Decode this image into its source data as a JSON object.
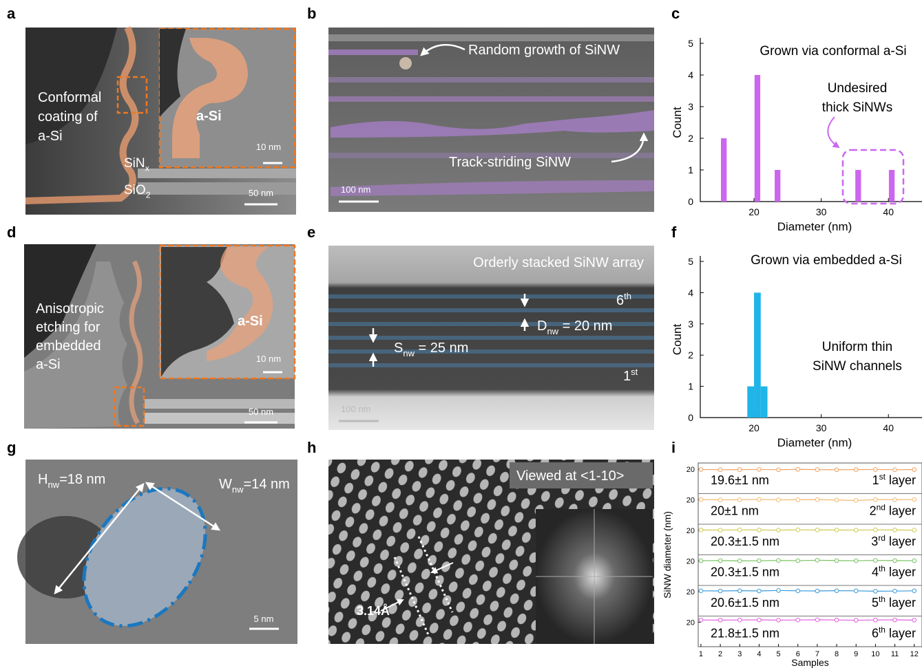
{
  "panel_labels": [
    "a",
    "b",
    "c",
    "d",
    "e",
    "f",
    "g",
    "h",
    "i"
  ],
  "panels": {
    "a": {
      "texts": [
        "Conformal",
        "coating of",
        "a-Si"
      ],
      "inset_label": "a-Si",
      "layers": [
        {
          "text": "SiN",
          "sub": "x"
        },
        {
          "text": "SiO",
          "sub": "2"
        }
      ],
      "scale_bars": [
        "10 nm",
        "50 nm"
      ]
    },
    "b": {
      "annotations": [
        "Random growth of SiNW",
        "Track-striding SiNW"
      ],
      "scale_bar": "100 nm"
    },
    "d": {
      "texts": [
        "Anisotropic",
        "etching for",
        "embedded",
        "a-Si"
      ],
      "inset_label": "a-Si",
      "scale_bars": [
        "10 nm",
        "50 nm"
      ]
    },
    "e": {
      "title": "Orderly stacked SiNW array",
      "layers": [
        {
          "text": "6",
          "sup": "th"
        },
        {
          "text": "1",
          "sup": "st"
        }
      ],
      "dims": [
        {
          "text": "D",
          "sub": "nw",
          "tail": " = 20 nm"
        },
        {
          "text": "S",
          "sub": "nw",
          "tail": " = 25 nm"
        }
      ],
      "scale_bar": "100 nm"
    },
    "g": {
      "dims": [
        {
          "text": "H",
          "sub": "nw",
          "tail": "=18 nm"
        },
        {
          "text": "W",
          "sub": "nw",
          "tail": "=14 nm"
        }
      ],
      "scale_bar": "5 nm"
    },
    "h": {
      "view": "Viewed at <1-10>",
      "spacing": "3.14Å"
    }
  },
  "chart_data": [
    {
      "type": "bar",
      "title": "Grown via conformal a-Si",
      "annotation": [
        "Undesired",
        "thick SiNWs"
      ],
      "x": [
        15.5,
        20.5,
        23.5,
        35.5,
        40.5
      ],
      "values": [
        2,
        4,
        1,
        1,
        1
      ],
      "color": "#cc66ee",
      "xlim": [
        12,
        45
      ],
      "xticks": [
        20,
        30,
        40
      ],
      "ylim": [
        0,
        5
      ],
      "yticks": [
        0,
        1,
        2,
        3,
        4,
        5
      ],
      "xlabel": "Diameter (nm)",
      "ylabel": "Count"
    },
    {
      "type": "bar",
      "title": "Grown via embedded a-Si",
      "annotation": [
        "Uniform thin",
        "SiNW channels"
      ],
      "x": [
        19.5,
        20.5,
        21.5
      ],
      "values": [
        1,
        4,
        1
      ],
      "color": "#1fb5e8",
      "xlim": [
        12,
        45
      ],
      "xticks": [
        20,
        30,
        40
      ],
      "ylim": [
        0,
        5
      ],
      "yticks": [
        0,
        1,
        2,
        3,
        4,
        5
      ],
      "xlabel": "Diameter (nm)",
      "ylabel": "Count"
    },
    {
      "type": "line",
      "xlabel": "Samples",
      "ylabel": "SiNW diameter (nm)",
      "x": [
        1,
        2,
        3,
        4,
        5,
        6,
        7,
        8,
        9,
        10,
        11,
        12
      ],
      "xlim": [
        0.86,
        12.4
      ],
      "xticks": [
        1,
        2,
        3,
        4,
        5,
        6,
        7,
        8,
        9,
        10,
        11,
        12
      ],
      "series": [
        {
          "stat": "19.6±1 nm",
          "layer": {
            "num": "1",
            "sup": "st",
            "word": " layer"
          },
          "color": "#f0a060",
          "values": [
            19.7,
            19.5,
            19.6,
            19.7,
            19.5,
            19.8,
            19.6,
            19.5,
            19.6,
            19.7,
            19.5,
            19.6
          ],
          "ylim": [
            0,
            25
          ],
          "yticks": [
            20
          ]
        },
        {
          "stat": "20±1 nm",
          "layer": {
            "num": "2",
            "sup": "nd",
            "word": " layer"
          },
          "color": "#f5b870",
          "values": [
            20.1,
            19.9,
            20.0,
            20.2,
            19.9,
            20.0,
            20.1,
            19.8,
            19.4,
            20.1,
            20.0,
            20.2
          ],
          "ylim": [
            0,
            25
          ],
          "yticks": [
            20
          ]
        },
        {
          "stat": "20.3±1.5 nm",
          "layer": {
            "num": "3",
            "sup": "rd",
            "word": " layer"
          },
          "color": "#d0c850",
          "values": [
            20.3,
            20.2,
            20.4,
            20.3,
            20.2,
            20.4,
            20.3,
            20.3,
            20.2,
            20.4,
            20.3,
            20.2
          ],
          "ylim": [
            0,
            25
          ],
          "yticks": [
            20
          ]
        },
        {
          "stat": "20.3±1.5 nm",
          "layer": {
            "num": "4",
            "sup": "th",
            "word": " layer"
          },
          "color": "#78c060",
          "values": [
            20.2,
            20.3,
            20.1,
            20.2,
            20.4,
            20.2,
            20.6,
            20.3,
            20.2,
            20.4,
            20.3,
            20.2
          ],
          "ylim": [
            0,
            25
          ],
          "yticks": [
            20
          ]
        },
        {
          "stat": "20.6±1.5 nm",
          "layer": {
            "num": "5",
            "sup": "th",
            "word": " layer"
          },
          "color": "#3a9ad9",
          "values": [
            20.6,
            20.5,
            20.7,
            20.5,
            20.9,
            20.6,
            20.5,
            20.7,
            20.6,
            20.3,
            20.4,
            20.6
          ],
          "ylim": [
            0,
            25
          ],
          "yticks": [
            20
          ]
        },
        {
          "stat": "21.8±1.5 nm",
          "layer": {
            "num": "6",
            "sup": "th",
            "word": " layer"
          },
          "color": "#e060e0",
          "values": [
            21.8,
            21.7,
            21.8,
            21.9,
            21.7,
            21.8,
            22.0,
            21.8,
            21.6,
            21.8,
            21.9,
            21.7
          ],
          "ylim": [
            0,
            25
          ],
          "yticks": [
            20
          ]
        }
      ]
    }
  ]
}
